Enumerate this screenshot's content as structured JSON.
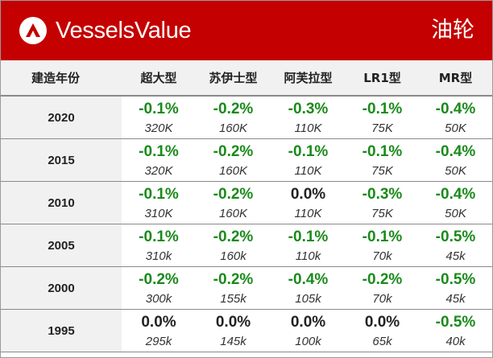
{
  "header": {
    "brand": "VesselsValue",
    "title": "油轮",
    "accent_color": "#c40000"
  },
  "table": {
    "year_header": "建造年份",
    "columns": [
      "超大型",
      "苏伊士型",
      "阿芙拉型",
      "LR1型",
      "MR型"
    ],
    "rows": [
      {
        "year": "2020",
        "cells": [
          {
            "pct": "-0.1%",
            "val": "320K"
          },
          {
            "pct": "-0.2%",
            "val": "160K"
          },
          {
            "pct": "-0.3%",
            "val": "110K"
          },
          {
            "pct": "-0.1%",
            "val": "75K"
          },
          {
            "pct": "-0.4%",
            "val": "50K"
          }
        ]
      },
      {
        "year": "2015",
        "cells": [
          {
            "pct": "-0.1%",
            "val": "320K"
          },
          {
            "pct": "-0.2%",
            "val": "160K"
          },
          {
            "pct": "-0.1%",
            "val": "110K"
          },
          {
            "pct": "-0.1%",
            "val": "75K"
          },
          {
            "pct": "-0.4%",
            "val": "50K"
          }
        ]
      },
      {
        "year": "2010",
        "cells": [
          {
            "pct": "-0.1%",
            "val": "310K"
          },
          {
            "pct": "-0.2%",
            "val": "160K"
          },
          {
            "pct": "0.0%",
            "val": "110K"
          },
          {
            "pct": "-0.3%",
            "val": "75K"
          },
          {
            "pct": "-0.4%",
            "val": "50K"
          }
        ]
      },
      {
        "year": "2005",
        "cells": [
          {
            "pct": "-0.1%",
            "val": "310k"
          },
          {
            "pct": "-0.2%",
            "val": "160k"
          },
          {
            "pct": "-0.1%",
            "val": "110k"
          },
          {
            "pct": "-0.1%",
            "val": "70k"
          },
          {
            "pct": "-0.5%",
            "val": "45k"
          }
        ]
      },
      {
        "year": "2000",
        "cells": [
          {
            "pct": "-0.2%",
            "val": "300k"
          },
          {
            "pct": "-0.2%",
            "val": "155k"
          },
          {
            "pct": "-0.4%",
            "val": "105k"
          },
          {
            "pct": "-0.2%",
            "val": "70k"
          },
          {
            "pct": "-0.5%",
            "val": "45k"
          }
        ]
      },
      {
        "year": "1995",
        "cells": [
          {
            "pct": "0.0%",
            "val": "295k"
          },
          {
            "pct": "0.0%",
            "val": "145k"
          },
          {
            "pct": "0.0%",
            "val": "100k"
          },
          {
            "pct": "0.0%",
            "val": "65k"
          },
          {
            "pct": "-0.5%",
            "val": "40k"
          }
        ]
      }
    ]
  },
  "colors": {
    "negative": "#1a8a1a",
    "zero": "#222222"
  }
}
